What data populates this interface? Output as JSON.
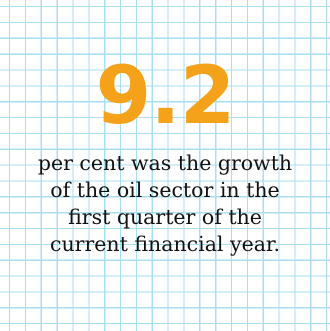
{
  "stat": {
    "value": "9.2",
    "caption_lines": [
      "per cent was the growth",
      "of the oil sector in the",
      "first quarter of the",
      "current financial year."
    ]
  },
  "colors": {
    "number": "#f5a21b",
    "text": "#111111",
    "grid_line": "#a9dff0",
    "background": "#ffffff"
  }
}
